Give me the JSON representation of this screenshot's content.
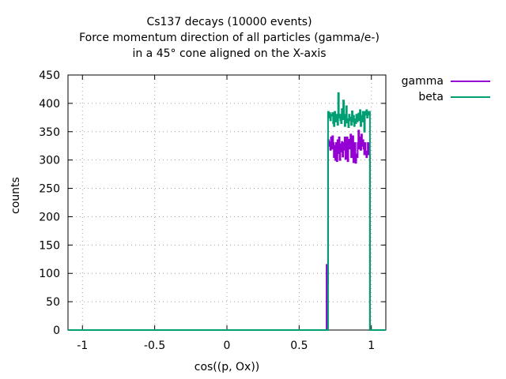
{
  "chart_data": {
    "type": "line",
    "title": [
      "Cs137 decays (10000 events)",
      "Force momentum direction of all particles (gamma/e-)",
      "in a 45° cone aligned on the X-axis"
    ],
    "xlabel": "cos((p, Ox))",
    "ylabel": "counts",
    "xlim": [
      -1.1,
      1.1
    ],
    "ylim": [
      0,
      450
    ],
    "x_ticks": [
      -1,
      -0.5,
      0,
      0.5,
      1
    ],
    "x_tick_labels": [
      "-1",
      "-0.5",
      "0",
      "0.5",
      "1"
    ],
    "y_ticks": [
      0,
      50,
      100,
      150,
      200,
      250,
      300,
      350,
      400,
      450
    ],
    "y_tick_labels": [
      "0",
      "50",
      "100",
      "150",
      "200",
      "250",
      "300",
      "350",
      "400",
      "450"
    ],
    "grid": true,
    "legend_position": "top-right outside",
    "step": true,
    "series": [
      {
        "name": "gamma",
        "color": "#9400d3",
        "x": [
          -1.1,
          0.69,
          0.695,
          0.7,
          0.705,
          0.71,
          0.715,
          0.72,
          0.725,
          0.73,
          0.735,
          0.74,
          0.745,
          0.75,
          0.755,
          0.76,
          0.765,
          0.77,
          0.775,
          0.78,
          0.785,
          0.79,
          0.795,
          0.8,
          0.805,
          0.81,
          0.815,
          0.82,
          0.825,
          0.83,
          0.835,
          0.84,
          0.845,
          0.85,
          0.855,
          0.86,
          0.865,
          0.87,
          0.875,
          0.88,
          0.885,
          0.89,
          0.895,
          0.9,
          0.905,
          0.91,
          0.915,
          0.92,
          0.925,
          0.93,
          0.935,
          0.94,
          0.945,
          0.95,
          0.955,
          0.96,
          0.965,
          0.97,
          0.975,
          0.98,
          0.985,
          0.99,
          1.1
        ],
        "y": [
          0,
          115,
          83,
          335,
          325,
          332,
          318,
          340,
          320,
          342,
          330,
          305,
          325,
          300,
          330,
          298,
          335,
          312,
          340,
          300,
          328,
          315,
          332,
          306,
          330,
          318,
          340,
          302,
          330,
          340,
          298,
          325,
          336,
          320,
          345,
          305,
          330,
          342,
          296,
          320,
          330,
          295,
          310,
          305,
          330,
          352,
          320,
          340,
          318,
          345,
          325,
          335,
          320,
          310,
          330,
          315,
          305,
          310,
          330,
          318,
          310,
          0,
          0
        ]
      },
      {
        "name": "beta",
        "color": "#009e73",
        "x": [
          -1.1,
          0.69,
          0.695,
          0.7,
          0.705,
          0.71,
          0.715,
          0.72,
          0.725,
          0.73,
          0.735,
          0.74,
          0.745,
          0.75,
          0.755,
          0.76,
          0.765,
          0.77,
          0.775,
          0.78,
          0.785,
          0.79,
          0.795,
          0.8,
          0.805,
          0.81,
          0.815,
          0.82,
          0.825,
          0.83,
          0.835,
          0.84,
          0.845,
          0.85,
          0.855,
          0.86,
          0.865,
          0.87,
          0.875,
          0.88,
          0.885,
          0.89,
          0.895,
          0.9,
          0.905,
          0.91,
          0.915,
          0.92,
          0.925,
          0.93,
          0.935,
          0.94,
          0.945,
          0.95,
          0.955,
          0.96,
          0.965,
          0.97,
          0.975,
          0.98,
          0.985,
          0.99,
          1.1
        ],
        "y": [
          0,
          0,
          0,
          385,
          375,
          383,
          370,
          380,
          378,
          383,
          365,
          360,
          385,
          372,
          368,
          380,
          362,
          418,
          375,
          380,
          370,
          365,
          390,
          372,
          405,
          380,
          360,
          378,
          395,
          366,
          372,
          358,
          380,
          370,
          375,
          362,
          386,
          368,
          378,
          360,
          372,
          365,
          380,
          368,
          375,
          382,
          370,
          388,
          360,
          378,
          368,
          385,
          375,
          350,
          385,
          380,
          388,
          375,
          385,
          380,
          385,
          0,
          0
        ]
      }
    ]
  }
}
